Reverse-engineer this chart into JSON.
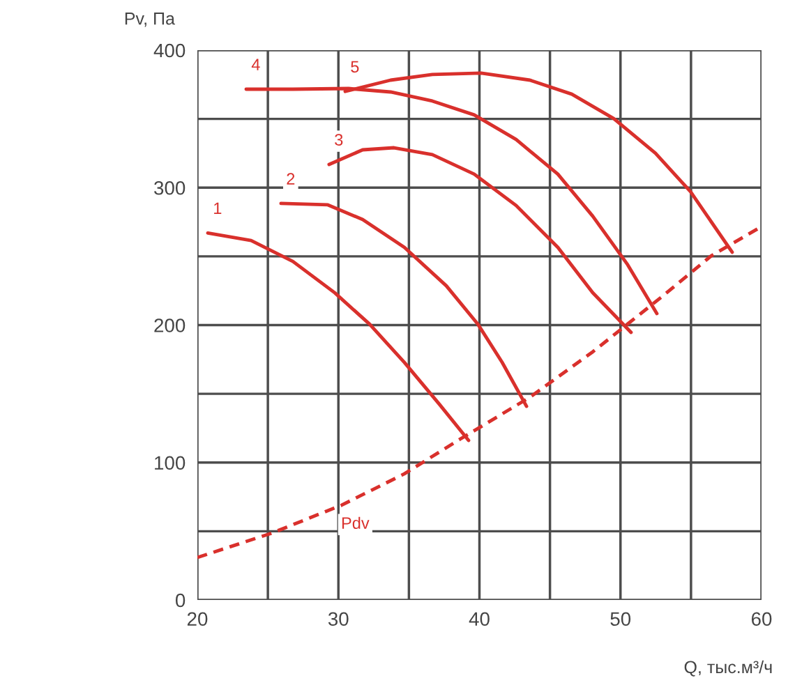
{
  "chart_data": {
    "type": "line",
    "xlabel": "Q, тыс.м³/ч",
    "ylabel": "Pv, Па",
    "xlim": [
      20,
      60
    ],
    "ylim": [
      0,
      400
    ],
    "xticks": [
      20,
      {
        "value": 25,
        "label": null
      },
      30,
      {
        "value": 35,
        "label": null
      },
      40,
      {
        "value": 45,
        "label": null
      },
      50,
      {
        "value": 55,
        "label": null
      },
      60
    ],
    "yticks": [
      0,
      {
        "value": 50,
        "label": null
      },
      100,
      {
        "value": 150,
        "label": null
      },
      200,
      {
        "value": 250,
        "label": null
      },
      300,
      {
        "value": 350,
        "label": null
      },
      400
    ],
    "grid": true,
    "legend": false,
    "series": [
      {
        "name": "1",
        "color": "#d9302c",
        "line_style": "solid",
        "x": [
          20.74,
          23.81,
          26.77,
          29.74,
          32.21,
          34.68,
          37.16,
          39.23
        ],
        "values": [
          267,
          261.5,
          246.3,
          223.5,
          200.7,
          172.8,
          142.4,
          116.1
        ]
      },
      {
        "name": "2",
        "color": "#d9302c",
        "line_style": "solid",
        "x": [
          25.93,
          29.25,
          31.72,
          34.68,
          37.65,
          39.88,
          41.61,
          43.34
        ],
        "values": [
          288.5,
          287.5,
          276.8,
          256.5,
          228.6,
          200.8,
          172.9,
          140.9
        ]
      },
      {
        "name": "3",
        "color": "#d9302c",
        "line_style": "solid",
        "x": [
          29.34,
          31.72,
          33.94,
          36.66,
          39.63,
          42.6,
          45.56,
          48.03,
          50.75
        ],
        "values": [
          316.9,
          327.5,
          329,
          324,
          309.8,
          287,
          256.5,
          223.6,
          194.7
        ]
      },
      {
        "name": "4",
        "color": "#d9302c",
        "line_style": "solid",
        "x": [
          23.46,
          26.77,
          30.73,
          33.7,
          36.66,
          39.63,
          42.6,
          45.56,
          48.03,
          50.51,
          52.58
        ],
        "values": [
          371.6,
          371.6,
          372.1,
          369.6,
          363,
          352.9,
          335,
          309.8,
          279.3,
          243.9,
          208.4
        ]
      },
      {
        "name": "5",
        "color": "#d9302c",
        "line_style": "solid",
        "x": [
          30.48,
          33.7,
          36.66,
          40.12,
          43.58,
          46.55,
          49.52,
          52.48,
          54.96,
          57.92
        ],
        "values": [
          370,
          378.2,
          382.3,
          383.3,
          378.2,
          368,
          350.3,
          325,
          297.1,
          253
        ]
      },
      {
        "color": "#d9302c",
        "line_style": "dashed",
        "x": [
          20,
          25.29,
          30.23,
          34.68,
          38.64,
          43.58,
          48.03,
          52.98,
          56.44,
          60
        ],
        "values": [
          30.9,
          48.7,
          69,
          91.8,
          117.1,
          147.5,
          180.5,
          221,
          250.4,
          271.7
        ]
      }
    ],
    "annotations": [
      {
        "text": "Pdv",
        "x": 30.23,
        "y": 69
      }
    ]
  }
}
